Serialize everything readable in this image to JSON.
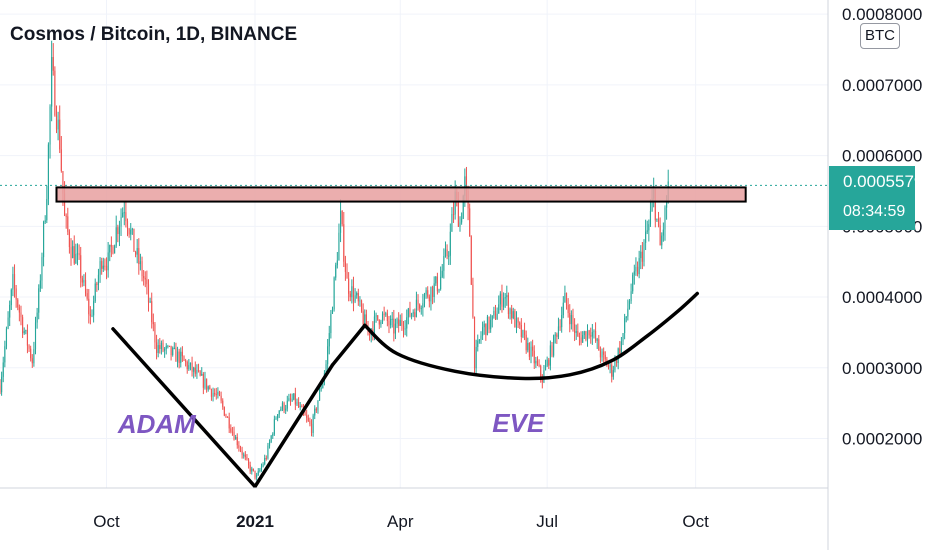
{
  "chart_data": {
    "type": "candlestick",
    "title": "Cosmos / Bitcoin, 1D, BINANCE",
    "currency": "BTC",
    "yticks": [
      0.0002,
      0.0003,
      0.0004,
      0.0005,
      0.0006,
      0.0007,
      0.0008
    ],
    "ytick_labels": [
      "0.0002000",
      "0.0003000",
      "0.0004000",
      "0.0005000",
      "0.0006000",
      "0.0007000",
      "0.0008000"
    ],
    "ylim": [
      0.00013,
      0.00082
    ],
    "xticks": [
      {
        "label": "Oct",
        "date": "2020-10-01"
      },
      {
        "label": "2021",
        "date": "2021-01-01"
      },
      {
        "label": "Apr",
        "date": "2021-04-01"
      },
      {
        "label": "Jul",
        "date": "2021-07-01"
      },
      {
        "label": "Oct",
        "date": "2021-10-01"
      }
    ],
    "xlim": [
      "2020-07-27",
      "2021-12-22"
    ],
    "last_price": "0.0005579",
    "last_price_value": 0.0005579,
    "countdown": "08:34:59",
    "colors": {
      "up": "#26a69a",
      "down": "#ef5350",
      "price_tag": "#26a69a",
      "annotation": "#7e57c2",
      "resistance_fill": "#e8a0a0"
    },
    "resistance_zone": {
      "from": "2020-08-31",
      "to": "2021-11-01",
      "low": 0.000535,
      "high": 0.000555
    },
    "trendlines": [
      {
        "points": [
          [
            "2020-10-05",
            0.000355
          ],
          [
            "2021-01-01",
            0.000132
          ]
        ]
      },
      {
        "points": [
          [
            "2021-01-01",
            0.000132
          ],
          [
            "2021-02-18",
            0.000304
          ]
        ]
      },
      {
        "points": [
          [
            "2021-02-18",
            0.000304
          ],
          [
            "2021-03-10",
            0.00036
          ]
        ]
      },
      {
        "points": [
          [
            "2021-03-10",
            0.00036
          ],
          [
            "2021-03-30",
            0.00032
          ],
          [
            "2021-05-05",
            0.000295
          ],
          [
            "2021-06-15",
            0.000285
          ],
          [
            "2021-07-15",
            0.00029
          ],
          [
            "2021-08-10",
            0.00031
          ],
          [
            "2021-09-01",
            0.000345
          ],
          [
            "2021-09-20",
            0.00038
          ],
          [
            "2021-10-02",
            0.000405
          ]
        ]
      }
    ],
    "annotations": [
      {
        "text": "ADAM",
        "date": "2020-10-08",
        "value": 0.00021
      },
      {
        "text": "EVE",
        "date": "2021-05-28",
        "value": 0.000212
      }
    ],
    "price_path": [
      [
        "2020-07-27",
        0.000275
      ],
      [
        "2020-08-04",
        0.00042
      ],
      [
        "2020-08-10",
        0.00036
      ],
      [
        "2020-08-16",
        0.00031
      ],
      [
        "2020-08-20",
        0.0004
      ],
      [
        "2020-08-25",
        0.000555
      ],
      [
        "2020-08-28",
        0.00072
      ],
      [
        "2020-09-02",
        0.00062
      ],
      [
        "2020-09-05",
        0.00051
      ],
      [
        "2020-09-09",
        0.00047
      ],
      [
        "2020-09-14",
        0.000445
      ],
      [
        "2020-09-21",
        0.00037
      ],
      [
        "2020-09-28",
        0.000455
      ],
      [
        "2020-10-02",
        0.00045
      ],
      [
        "2020-10-07",
        0.000495
      ],
      [
        "2020-10-12",
        0.00053
      ],
      [
        "2020-10-18",
        0.00047
      ],
      [
        "2020-10-25",
        0.00042
      ],
      [
        "2020-11-01",
        0.00033
      ],
      [
        "2020-11-15",
        0.000315
      ],
      [
        "2020-11-30",
        0.00028
      ],
      [
        "2020-12-10",
        0.000255
      ],
      [
        "2020-12-20",
        0.0002
      ],
      [
        "2020-12-28",
        0.00016
      ],
      [
        "2021-01-02",
        0.000145
      ],
      [
        "2021-01-08",
        0.000175
      ],
      [
        "2021-01-15",
        0.00024
      ],
      [
        "2021-01-25",
        0.000255
      ],
      [
        "2021-02-05",
        0.000215
      ],
      [
        "2021-02-14",
        0.000305
      ],
      [
        "2021-02-20",
        0.00044
      ],
      [
        "2021-02-23",
        0.00051
      ],
      [
        "2021-02-27",
        0.00042
      ],
      [
        "2021-03-05",
        0.000395
      ],
      [
        "2021-03-12",
        0.00035
      ],
      [
        "2021-03-20",
        0.000375
      ],
      [
        "2021-03-28",
        0.000355
      ],
      [
        "2021-04-05",
        0.00037
      ],
      [
        "2021-04-15",
        0.0004
      ],
      [
        "2021-04-25",
        0.00042
      ],
      [
        "2021-05-01",
        0.00047
      ],
      [
        "2021-05-05",
        0.00054
      ],
      [
        "2021-05-08",
        0.000505
      ],
      [
        "2021-05-11",
        0.00056
      ],
      [
        "2021-05-14",
        0.00049
      ],
      [
        "2021-05-17",
        0.00031
      ],
      [
        "2021-05-22",
        0.000355
      ],
      [
        "2021-05-28",
        0.000365
      ],
      [
        "2021-06-04",
        0.000405
      ],
      [
        "2021-06-12",
        0.00036
      ],
      [
        "2021-06-20",
        0.000325
      ],
      [
        "2021-06-28",
        0.000285
      ],
      [
        "2021-07-05",
        0.000335
      ],
      [
        "2021-07-12",
        0.000395
      ],
      [
        "2021-07-20",
        0.00034
      ],
      [
        "2021-07-28",
        0.000355
      ],
      [
        "2021-08-04",
        0.000315
      ],
      [
        "2021-08-10",
        0.000295
      ],
      [
        "2021-08-16",
        0.000335
      ],
      [
        "2021-08-22",
        0.00041
      ],
      [
        "2021-08-28",
        0.000455
      ],
      [
        "2021-09-02",
        0.0005
      ],
      [
        "2021-09-05",
        0.000545
      ],
      [
        "2021-09-09",
        0.00047
      ],
      [
        "2021-09-12",
        0.000515
      ],
      [
        "2021-09-14",
        0.000558
      ]
    ]
  }
}
